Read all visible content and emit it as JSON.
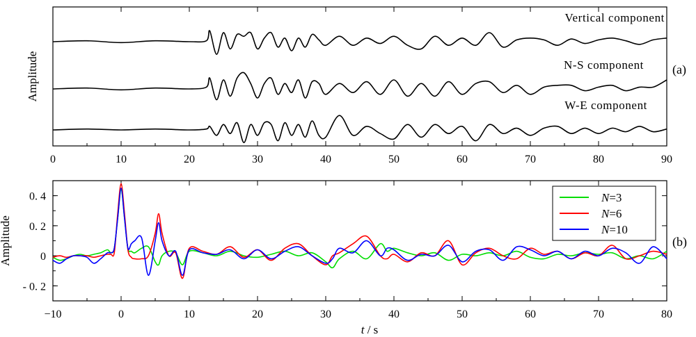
{
  "figure": {
    "label_a": "(a)",
    "label_b": "(b)"
  },
  "chart_data": [
    {
      "type": "line",
      "panel": "a",
      "ylabel": "Amplitude",
      "xlim": [
        0,
        90
      ],
      "xticks": [
        0,
        10,
        20,
        30,
        40,
        50,
        60,
        70,
        80,
        90
      ],
      "y_ticks_shown": false,
      "series": [
        {
          "name": "Vertical component",
          "x": [
            0,
            5,
            10,
            15,
            20,
            22.5,
            23,
            24,
            25,
            26,
            27,
            28,
            29,
            30,
            31,
            32,
            33,
            34,
            35,
            36,
            37,
            38,
            39,
            40,
            42,
            44,
            46,
            48,
            50,
            52,
            54,
            56,
            58,
            60,
            62,
            64,
            66,
            68,
            70,
            72,
            74,
            76,
            78,
            80,
            82,
            84,
            86,
            88,
            90
          ],
          "y": [
            0,
            0.05,
            -0.05,
            0.05,
            0,
            0.05,
            0.6,
            -0.7,
            0.5,
            -0.4,
            0.4,
            0.3,
            0.5,
            -0.4,
            0.2,
            0.5,
            -0.3,
            0.2,
            -0.5,
            0.2,
            -0.3,
            0.4,
            0.1,
            -0.2,
            0.3,
            -0.2,
            0.2,
            -0.1,
            0.3,
            -0.2,
            -0.4,
            0.3,
            -0.2,
            0.2,
            -0.2,
            0.5,
            -0.3,
            0.1,
            0.2,
            0.1,
            -0.2,
            0.15,
            -0.1,
            0.1,
            0.2,
            0.05,
            -0.15,
            0.1,
            0.2
          ]
        },
        {
          "name": "N-S component",
          "x": [
            0,
            5,
            10,
            15,
            20,
            22.5,
            23,
            24,
            25,
            26,
            27,
            28,
            29,
            30,
            31,
            32,
            33,
            34,
            35,
            36,
            37,
            38,
            39,
            40,
            42,
            44,
            46,
            48,
            50,
            52,
            54,
            56,
            58,
            60,
            62,
            64,
            66,
            68,
            70,
            72,
            74,
            76,
            78,
            80,
            82,
            84,
            86,
            88,
            90
          ],
          "y": [
            0,
            0.05,
            -0.05,
            0.05,
            0,
            0.1,
            0.6,
            -0.6,
            0.5,
            -0.4,
            0.6,
            0.9,
            0.3,
            -0.5,
            0.3,
            0.6,
            -0.3,
            0.3,
            -0.2,
            0.5,
            -0.5,
            0.4,
            0.3,
            -0.3,
            0.3,
            -0.2,
            0.4,
            -0.3,
            0.5,
            -0.4,
            0.3,
            -0.4,
            0.4,
            -0.3,
            0.3,
            0.4,
            -0.2,
            0.2,
            -0.3,
            0.1,
            0.2,
            0.2,
            -0.1,
            0.1,
            0.2,
            -0.1,
            0.1,
            0.1,
            0.5
          ]
        },
        {
          "name": "W-E component",
          "x": [
            0,
            5,
            10,
            15,
            20,
            22.5,
            23,
            24,
            25,
            26,
            27,
            28,
            29,
            30,
            31,
            32,
            33,
            34,
            35,
            36,
            37,
            38,
            39,
            40,
            42,
            44,
            46,
            48,
            50,
            52,
            54,
            56,
            58,
            60,
            62,
            64,
            66,
            68,
            70,
            72,
            74,
            76,
            78,
            80,
            82,
            84,
            86,
            88,
            90
          ],
          "y": [
            0,
            0.05,
            0,
            0.05,
            0,
            0.05,
            0.2,
            -0.3,
            0.3,
            -0.2,
            0.4,
            -0.7,
            0.3,
            -0.3,
            0.4,
            0.3,
            -0.6,
            0.4,
            -0.3,
            0.3,
            -0.4,
            0.5,
            -0.3,
            -0.4,
            0.8,
            -0.3,
            0.2,
            -0.2,
            -0.5,
            0.3,
            -0.4,
            0.3,
            -0.2,
            0.2,
            -0.6,
            0.3,
            -0.2,
            0.1,
            -0.3,
            0.1,
            0.2,
            -0.2,
            0.1,
            -0.2,
            0.1,
            -0.1,
            0.2,
            -0.1,
            0.05
          ]
        }
      ]
    },
    {
      "type": "line",
      "panel": "b",
      "xlabel": "t / s",
      "ylabel": "Amplitude",
      "xlim": [
        -10,
        80
      ],
      "ylim": [
        -0.3,
        0.5
      ],
      "xticks": [
        -10,
        0,
        10,
        20,
        30,
        40,
        50,
        60,
        70,
        80
      ],
      "yticks": [
        -0.2,
        0,
        0.2,
        0.4
      ],
      "ytick_labels": [
        "- 0. 2",
        "0",
        "0. 2",
        "0. 4"
      ],
      "legend": "top-right",
      "series": [
        {
          "name": "N=3",
          "color": "#00dd00",
          "x": [
            -10,
            -9,
            -8,
            -7,
            -6,
            -5,
            -4,
            -3,
            -2,
            -1.5,
            -1,
            -0.5,
            0,
            0.5,
            1,
            1.5,
            2,
            3,
            4,
            5,
            5.5,
            6,
            7,
            8,
            9,
            10,
            12,
            14,
            16,
            18,
            20,
            22,
            24,
            26,
            28,
            30,
            31,
            32,
            34,
            36,
            38,
            39,
            40,
            42,
            44,
            46,
            48,
            50,
            52,
            54,
            56,
            58,
            60,
            62,
            64,
            66,
            68,
            70,
            72,
            74,
            76,
            78,
            80
          ],
          "y": [
            -0.01,
            -0.03,
            -0.02,
            0,
            0.01,
            0,
            0.01,
            0.02,
            0.04,
            0.02,
            0.05,
            0.25,
            0.44,
            0.25,
            0.05,
            0.03,
            0.02,
            0.05,
            0.06,
            -0.04,
            -0.06,
            0,
            0.03,
            0.02,
            -0.06,
            0.03,
            0.02,
            0,
            0.03,
            0,
            -0.01,
            0.01,
            0.03,
            0,
            0.02,
            -0.04,
            -0.08,
            -0.02,
            0.03,
            -0.02,
            0.08,
            0.03,
            0.05,
            0.02,
            0,
            0.02,
            -0.03,
            0.01,
            0,
            0.02,
            0,
            0.03,
            -0.01,
            -0.02,
            0.01,
            0,
            0.02,
            0.01,
            0.02,
            -0.02,
            0,
            -0.02,
            0.03
          ]
        },
        {
          "name": "N=6",
          "color": "#ff0000",
          "x": [
            -10,
            -9,
            -8,
            -7,
            -6,
            -5,
            -4,
            -3,
            -2,
            -1.5,
            -1,
            -0.5,
            0,
            0.5,
            1,
            1.5,
            2,
            3,
            4,
            5,
            5.5,
            6,
            7,
            8,
            9,
            10,
            12,
            14,
            16,
            18,
            20,
            22,
            24,
            26,
            28,
            30,
            31,
            32,
            34,
            36,
            38,
            39,
            40,
            42,
            44,
            46,
            48,
            50,
            52,
            54,
            56,
            58,
            60,
            62,
            64,
            66,
            68,
            70,
            72,
            74,
            76,
            78,
            80
          ],
          "y": [
            -0.01,
            0,
            -0.01,
            0,
            0,
            0,
            -0.01,
            0,
            0.01,
            0.01,
            0.02,
            0.28,
            0.48,
            0.28,
            0.04,
            -0.01,
            -0.02,
            -0.02,
            0,
            0.15,
            0.28,
            0.15,
            0,
            0.02,
            -0.15,
            0.05,
            0.03,
            0.01,
            0.06,
            -0.01,
            0.04,
            -0.03,
            0.05,
            0.08,
            0,
            -0.06,
            0,
            0.02,
            0.08,
            0.13,
            0,
            -0.02,
            0.01,
            -0.04,
            0.02,
            0,
            0.1,
            -0.06,
            0.02,
            0.05,
            0,
            -0.02,
            0.05,
            0.01,
            0.03,
            -0.02,
            0.02,
            0,
            0.07,
            -0.02,
            0,
            0.03,
            0.01
          ]
        },
        {
          "name": "N=10",
          "color": "#0000ff",
          "x": [
            -10,
            -9,
            -8,
            -7,
            -6,
            -5,
            -4,
            -3,
            -2,
            -1.5,
            -1,
            -0.5,
            0,
            0.5,
            1,
            1.5,
            2,
            3,
            4,
            5,
            5.5,
            6,
            7,
            8,
            9,
            10,
            12,
            14,
            16,
            18,
            20,
            22,
            24,
            26,
            28,
            30,
            31,
            32,
            34,
            36,
            38,
            39,
            40,
            42,
            44,
            46,
            48,
            50,
            52,
            54,
            56,
            58,
            60,
            62,
            64,
            66,
            68,
            70,
            72,
            74,
            76,
            78,
            80
          ],
          "y": [
            -0.03,
            -0.05,
            -0.02,
            0,
            0,
            -0.01,
            -0.05,
            -0.02,
            0.02,
            0.02,
            0.05,
            0.25,
            0.45,
            0.25,
            0.05,
            0.08,
            0.1,
            0.12,
            -0.13,
            0.1,
            0.22,
            0.1,
            0,
            0.03,
            -0.13,
            0.04,
            0.02,
            0.01,
            0.04,
            -0.02,
            0.04,
            -0.02,
            0.03,
            0.06,
            0,
            -0.05,
            -0.02,
            0.05,
            0.02,
            0.1,
            0,
            0.05,
            0.04,
            -0.03,
            0.01,
            0,
            0.07,
            -0.04,
            0.03,
            0.04,
            -0.03,
            0.06,
            0.04,
            0,
            0.03,
            -0.02,
            0.03,
            0,
            0.05,
            0.02,
            -0.05,
            0.06,
            -0.02
          ]
        }
      ]
    }
  ]
}
